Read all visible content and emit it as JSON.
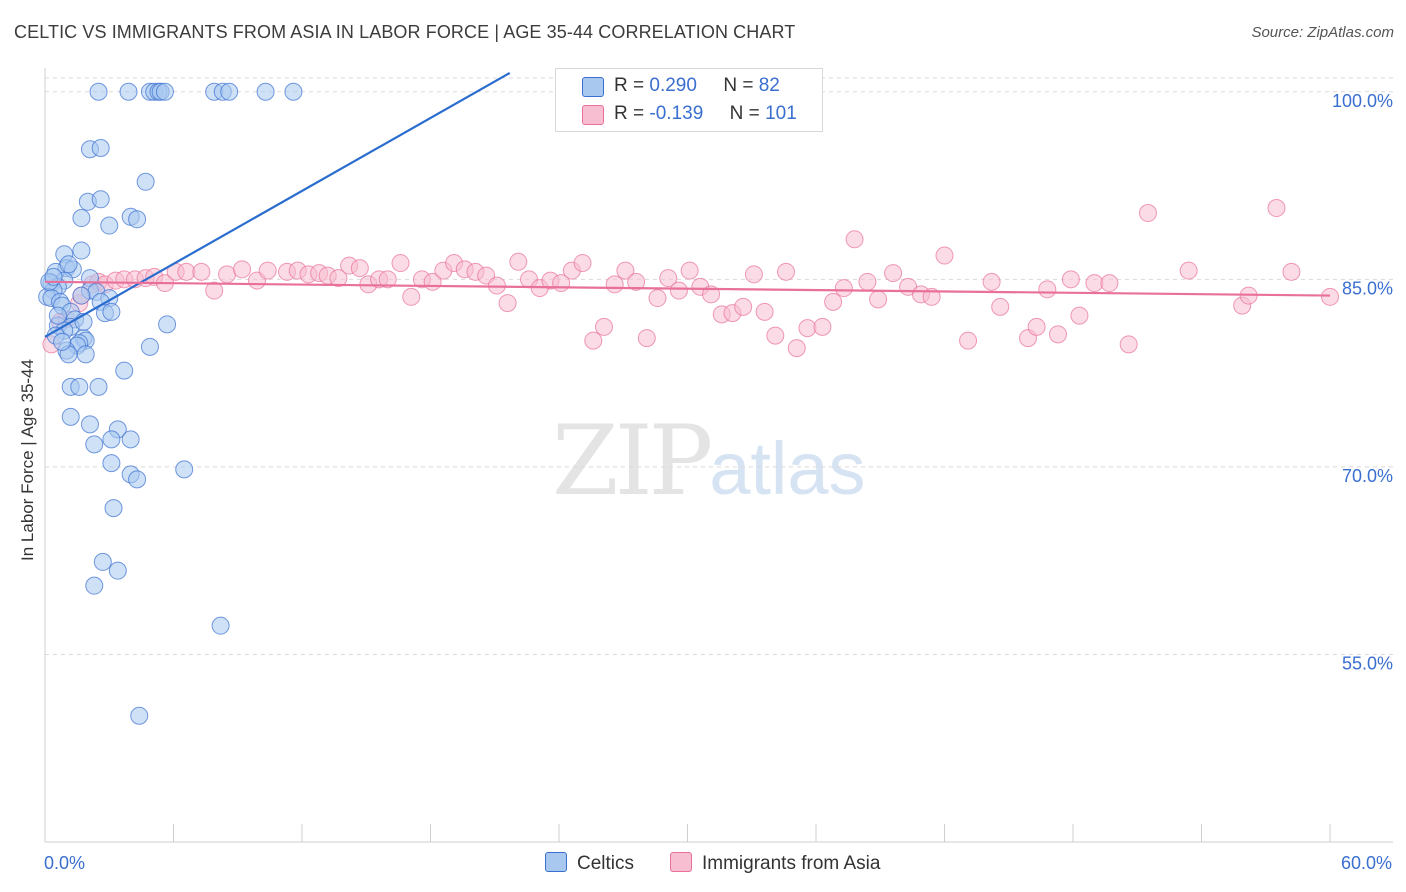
{
  "title": "CELTIC VS IMMIGRANTS FROM ASIA IN LABOR FORCE | AGE 35-44 CORRELATION CHART",
  "source": "Source: ZipAtlas.com",
  "watermark": {
    "zip": "ZIP",
    "atlas": "atlas"
  },
  "colors": {
    "blue": "#3a6fd0",
    "blue_fill": "#a8c8f0",
    "pink": "#e8709a",
    "pink_fill": "#f7bdd0",
    "grid": "#d9d9d9"
  },
  "legend": {
    "rows": [
      {
        "r_label": "R =",
        "r_value": "0.290",
        "n_label": "N =",
        "n_value": "82"
      },
      {
        "r_label": "R =",
        "r_value": "-0.139",
        "n_label": "N =",
        "n_value": "101"
      }
    ]
  },
  "bottom_legend": {
    "series1": "Celtics",
    "series2": "Immigrants from Asia"
  },
  "x_axis": {
    "min_label": "0.0%",
    "max_label": "60.0%"
  },
  "chart_data": {
    "type": "scatter",
    "title": "CELTIC VS IMMIGRANTS FROM ASIA IN LABOR FORCE | AGE 35-44 CORRELATION CHART",
    "xlabel": "",
    "ylabel": "In Labor Force | Age 35-44",
    "xlim": [
      0,
      60
    ],
    "ylim": [
      40,
      101.5
    ],
    "y_ticks": [
      {
        "value": 100,
        "label": "100.0%"
      },
      {
        "value": 85,
        "label": "85.0%"
      },
      {
        "value": 70,
        "label": "70.0%"
      },
      {
        "value": 55,
        "label": "55.0%"
      }
    ],
    "series": [
      {
        "name": "Celtics",
        "r": 0.29,
        "n": 82,
        "trend": {
          "x1": 0.0,
          "y1": 80.4,
          "x2": 21.7,
          "y2": 101.5
        },
        "points": [
          [
            2.5,
            100
          ],
          [
            3.9,
            100
          ],
          [
            4.9,
            100
          ],
          [
            5.1,
            100
          ],
          [
            5.3,
            100
          ],
          [
            5.4,
            100
          ],
          [
            5.6,
            100
          ],
          [
            7.9,
            100
          ],
          [
            8.3,
            100
          ],
          [
            8.6,
            100
          ],
          [
            10.3,
            100
          ],
          [
            11.6,
            100
          ],
          [
            2.1,
            95.4
          ],
          [
            2.6,
            95.5
          ],
          [
            4.7,
            92.8
          ],
          [
            2.0,
            91.2
          ],
          [
            2.6,
            91.4
          ],
          [
            1.7,
            89.9
          ],
          [
            4.0,
            90.0
          ],
          [
            4.3,
            89.8
          ],
          [
            3.0,
            89.3
          ],
          [
            0.9,
            87.0
          ],
          [
            1.7,
            87.3
          ],
          [
            1.0,
            85.9
          ],
          [
            1.3,
            85.8
          ],
          [
            0.5,
            85.6
          ],
          [
            2.1,
            85.1
          ],
          [
            0.3,
            84.7
          ],
          [
            0.9,
            84.9
          ],
          [
            0.6,
            84.4
          ],
          [
            0.4,
            84.1
          ],
          [
            0.1,
            83.6
          ],
          [
            0.3,
            83.5
          ],
          [
            0.7,
            83.2
          ],
          [
            2.1,
            84.1
          ],
          [
            2.4,
            84.0
          ],
          [
            3.0,
            83.5
          ],
          [
            1.7,
            83.7
          ],
          [
            2.6,
            83.2
          ],
          [
            0.8,
            82.9
          ],
          [
            1.2,
            82.4
          ],
          [
            1.4,
            81.8
          ],
          [
            2.8,
            82.3
          ],
          [
            3.1,
            82.4
          ],
          [
            0.6,
            81.3
          ],
          [
            1.2,
            81.2
          ],
          [
            0.9,
            80.9
          ],
          [
            1.8,
            80.3
          ],
          [
            1.9,
            80.1
          ],
          [
            1.6,
            79.9
          ],
          [
            1.5,
            79.7
          ],
          [
            1.0,
            79.3
          ],
          [
            1.1,
            79.0
          ],
          [
            1.9,
            79.0
          ],
          [
            5.7,
            81.4
          ],
          [
            4.9,
            79.6
          ],
          [
            3.7,
            77.7
          ],
          [
            1.2,
            76.4
          ],
          [
            1.6,
            76.4
          ],
          [
            2.5,
            76.4
          ],
          [
            1.2,
            74.0
          ],
          [
            2.1,
            73.4
          ],
          [
            3.4,
            73.0
          ],
          [
            2.3,
            71.8
          ],
          [
            3.1,
            72.2
          ],
          [
            4.0,
            72.2
          ],
          [
            3.1,
            70.3
          ],
          [
            4.0,
            69.4
          ],
          [
            4.3,
            69.0
          ],
          [
            6.5,
            69.8
          ],
          [
            3.2,
            66.7
          ],
          [
            2.7,
            62.4
          ],
          [
            3.4,
            61.7
          ],
          [
            2.3,
            60.5
          ],
          [
            8.2,
            57.3
          ],
          [
            4.4,
            50.1
          ],
          [
            0.5,
            80.5
          ],
          [
            0.6,
            82.1
          ],
          [
            1.8,
            81.6
          ],
          [
            0.2,
            84.8
          ],
          [
            1.1,
            86.2
          ],
          [
            0.4,
            85.2
          ],
          [
            0.8,
            80.0
          ]
        ]
      },
      {
        "name": "Immigrants from Asia",
        "r": -0.139,
        "n": 101,
        "trend": {
          "x1": 0.0,
          "y1": 84.8,
          "x2": 60.0,
          "y2": 83.7
        },
        "points": [
          [
            0.3,
            79.8
          ],
          [
            0.7,
            81.6
          ],
          [
            1.0,
            81.8
          ],
          [
            1.6,
            83.1
          ],
          [
            1.7,
            83.7
          ],
          [
            2.2,
            84.6
          ],
          [
            2.5,
            84.8
          ],
          [
            2.8,
            84.6
          ],
          [
            3.3,
            84.9
          ],
          [
            3.7,
            85.0
          ],
          [
            4.2,
            85.0
          ],
          [
            4.7,
            85.1
          ],
          [
            5.1,
            85.2
          ],
          [
            5.6,
            84.7
          ],
          [
            6.1,
            85.6
          ],
          [
            6.6,
            85.6
          ],
          [
            7.3,
            85.6
          ],
          [
            7.9,
            84.1
          ],
          [
            8.5,
            85.4
          ],
          [
            9.2,
            85.8
          ],
          [
            9.9,
            84.9
          ],
          [
            10.4,
            85.7
          ],
          [
            11.3,
            85.6
          ],
          [
            11.8,
            85.7
          ],
          [
            12.3,
            85.4
          ],
          [
            12.8,
            85.5
          ],
          [
            13.2,
            85.3
          ],
          [
            13.7,
            85.1
          ],
          [
            14.2,
            86.1
          ],
          [
            14.7,
            85.9
          ],
          [
            15.1,
            84.6
          ],
          [
            15.6,
            85.0
          ],
          [
            16.0,
            85.0
          ],
          [
            16.6,
            86.3
          ],
          [
            17.1,
            83.6
          ],
          [
            17.6,
            85.0
          ],
          [
            18.1,
            84.8
          ],
          [
            18.6,
            85.7
          ],
          [
            19.1,
            86.3
          ],
          [
            19.6,
            85.8
          ],
          [
            20.1,
            85.6
          ],
          [
            20.6,
            85.3
          ],
          [
            21.1,
            84.5
          ],
          [
            21.6,
            83.1
          ],
          [
            22.1,
            86.4
          ],
          [
            22.6,
            85.0
          ],
          [
            23.1,
            84.3
          ],
          [
            23.6,
            84.9
          ],
          [
            24.1,
            84.7
          ],
          [
            24.6,
            85.7
          ],
          [
            25.1,
            86.3
          ],
          [
            25.6,
            80.1
          ],
          [
            26.1,
            81.2
          ],
          [
            26.6,
            84.6
          ],
          [
            27.1,
            85.7
          ],
          [
            27.6,
            84.8
          ],
          [
            28.1,
            80.3
          ],
          [
            28.6,
            83.5
          ],
          [
            29.1,
            85.1
          ],
          [
            29.6,
            84.1
          ],
          [
            30.1,
            85.7
          ],
          [
            30.6,
            84.4
          ],
          [
            31.1,
            83.8
          ],
          [
            31.6,
            82.2
          ],
          [
            32.1,
            82.3
          ],
          [
            32.6,
            82.8
          ],
          [
            33.1,
            85.4
          ],
          [
            33.6,
            82.4
          ],
          [
            34.1,
            80.5
          ],
          [
            34.6,
            85.6
          ],
          [
            35.1,
            79.5
          ],
          [
            35.6,
            81.1
          ],
          [
            36.3,
            81.2
          ],
          [
            36.8,
            83.2
          ],
          [
            37.3,
            84.3
          ],
          [
            37.8,
            88.2
          ],
          [
            38.4,
            84.8
          ],
          [
            38.9,
            83.4
          ],
          [
            39.6,
            85.5
          ],
          [
            40.3,
            84.4
          ],
          [
            40.9,
            83.8
          ],
          [
            41.4,
            83.6
          ],
          [
            42.0,
            86.9
          ],
          [
            43.1,
            80.1
          ],
          [
            44.2,
            84.8
          ],
          [
            44.6,
            82.8
          ],
          [
            45.9,
            80.3
          ],
          [
            46.3,
            81.2
          ],
          [
            46.8,
            84.2
          ],
          [
            47.3,
            80.6
          ],
          [
            47.9,
            85.0
          ],
          [
            48.3,
            82.1
          ],
          [
            49.0,
            84.7
          ],
          [
            49.7,
            84.7
          ],
          [
            50.6,
            79.8
          ],
          [
            51.5,
            90.3
          ],
          [
            53.4,
            85.7
          ],
          [
            55.9,
            82.9
          ],
          [
            56.2,
            83.7
          ],
          [
            57.5,
            90.7
          ],
          [
            58.2,
            85.6
          ],
          [
            60.0,
            83.6
          ]
        ]
      }
    ]
  }
}
